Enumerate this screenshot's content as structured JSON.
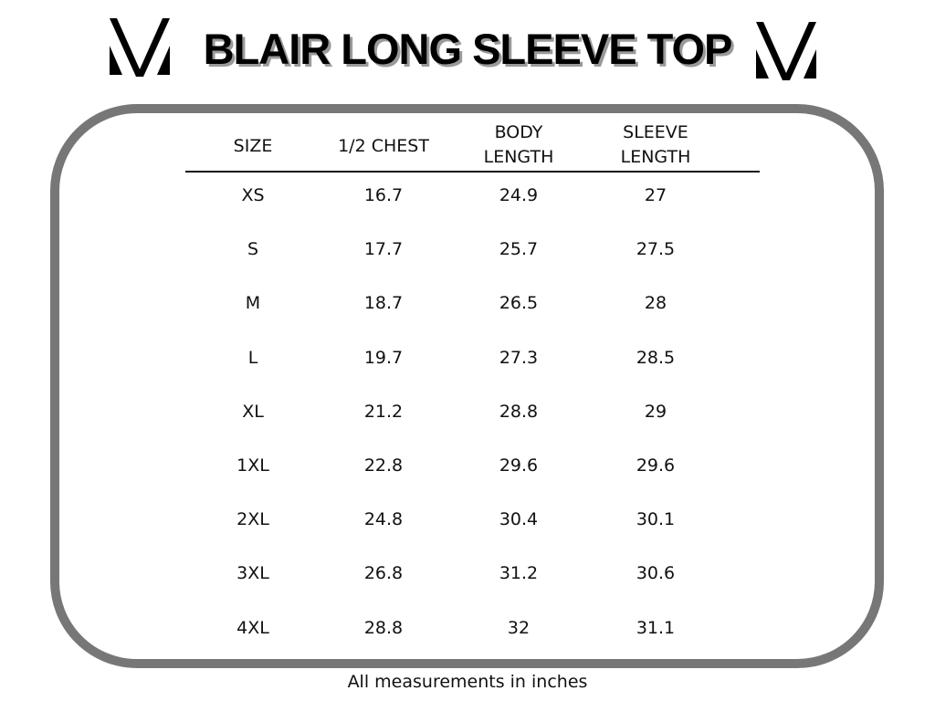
{
  "title": "BLAIR LONG SLEEVE TOP",
  "logo_icon": "v-monogram-logo",
  "headers": [
    {
      "line1": "SIZE",
      "line2": ""
    },
    {
      "line1": "1/2 CHEST",
      "line2": ""
    },
    {
      "line1": "BODY",
      "line2": "LENGTH"
    },
    {
      "line1": "SLEEVE",
      "line2": "LENGTH"
    }
  ],
  "rows": [
    [
      "XS",
      "16.7",
      "24.9",
      "27"
    ],
    [
      "S",
      "17.7",
      "25.7",
      "27.5"
    ],
    [
      "M",
      "18.7",
      "26.5",
      "28"
    ],
    [
      "L",
      "19.7",
      "27.3",
      "28.5"
    ],
    [
      "XL",
      "21.2",
      "28.8",
      "29"
    ],
    [
      "1XL",
      "22.8",
      "29.6",
      "29.6"
    ],
    [
      "2XL",
      "24.8",
      "30.4",
      "30.1"
    ],
    [
      "3XL",
      "26.8",
      "31.2",
      "30.6"
    ],
    [
      "4XL",
      "28.8",
      "32",
      "31.1"
    ]
  ],
  "footer": "All measurements in inches",
  "colors": {
    "frame": "#777777",
    "title_shadow": "#9a9a9a"
  }
}
